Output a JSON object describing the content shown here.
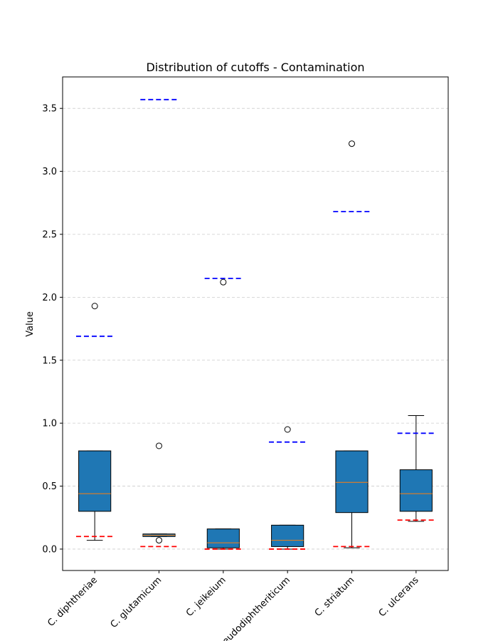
{
  "chart_data": {
    "type": "box",
    "title": "Distribution of cutoffs - Contamination",
    "xlabel": "",
    "ylabel": "Value",
    "ylim": [
      -0.17,
      3.75
    ],
    "yticks": [
      0.0,
      0.5,
      1.0,
      1.5,
      2.0,
      2.5,
      3.0,
      3.5
    ],
    "ytick_labels": [
      "0.0",
      "0.5",
      "1.0",
      "1.5",
      "2.0",
      "2.5",
      "3.0",
      "3.5"
    ],
    "grid": "y-dashed",
    "categories": [
      "C. diphtheriae",
      "C. glutamicum",
      "C. jeikeium",
      "C. pseudodiphtheriticum",
      "C. striatum",
      "C. ulcerans"
    ],
    "boxes": [
      {
        "whisker_low": 0.07,
        "q1": 0.3,
        "median": 0.44,
        "q3": 0.78,
        "whisker_high": 0.78,
        "outliers": [
          1.93
        ],
        "lower_cutoff": 0.1,
        "upper_cutoff": 1.69
      },
      {
        "whisker_low": 0.1,
        "q1": 0.1,
        "median": 0.11,
        "q3": 0.12,
        "whisker_high": 0.12,
        "outliers": [
          0.82,
          0.07
        ],
        "lower_cutoff": 0.02,
        "upper_cutoff": 3.57
      },
      {
        "whisker_low": 0.0,
        "q1": 0.01,
        "median": 0.05,
        "q3": 0.16,
        "whisker_high": 0.16,
        "outliers": [
          2.12
        ],
        "lower_cutoff": 0.0,
        "upper_cutoff": 2.15
      },
      {
        "whisker_low": 0.0,
        "q1": 0.02,
        "median": 0.07,
        "q3": 0.19,
        "whisker_high": 0.19,
        "outliers": [
          0.95
        ],
        "lower_cutoff": 0.0,
        "upper_cutoff": 0.85
      },
      {
        "whisker_low": 0.01,
        "q1": 0.29,
        "median": 0.53,
        "q3": 0.78,
        "whisker_high": 0.78,
        "outliers": [
          3.22
        ],
        "lower_cutoff": 0.02,
        "upper_cutoff": 2.68
      },
      {
        "whisker_low": 0.22,
        "q1": 0.3,
        "median": 0.44,
        "q3": 0.63,
        "whisker_high": 1.06,
        "outliers": [],
        "lower_cutoff": 0.23,
        "upper_cutoff": 0.92
      }
    ],
    "colors": {
      "box_fill": "#1f77b4",
      "median": "#ff7f0e",
      "lower_cutoff": "#ff0000",
      "upper_cutoff": "#0000ff",
      "grid": "#cccccc",
      "edge": "#000000"
    }
  }
}
